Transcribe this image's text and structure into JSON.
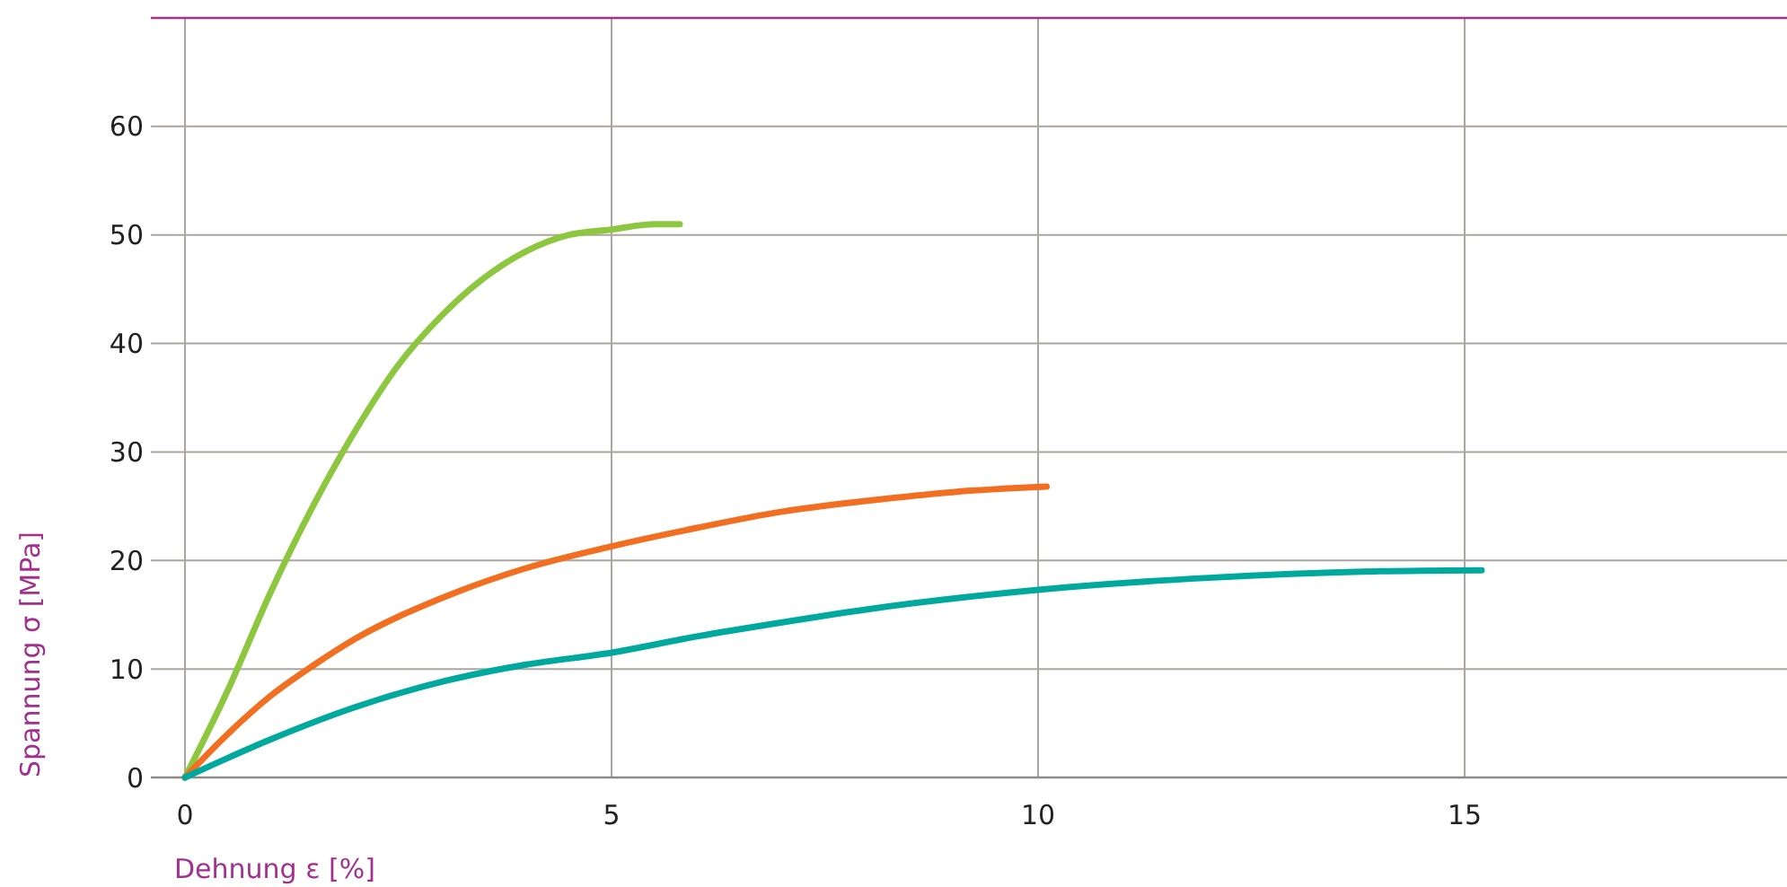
{
  "chart_data": {
    "type": "line",
    "xlabel": "Dehnung ε [%]",
    "ylabel": "Spannung σ [MPa]",
    "xlim": [
      -0.4,
      18.8
    ],
    "ylim": [
      0,
      70
    ],
    "xticks": [
      0,
      5,
      10,
      15
    ],
    "yticks": [
      0,
      10,
      20,
      30,
      40,
      50,
      60
    ],
    "grid": true,
    "line_style": "solid",
    "series": [
      {
        "color": "#8dc63f",
        "x": [
          0,
          0.5,
          1,
          1.5,
          2,
          2.5,
          3,
          3.5,
          4,
          4.5,
          5,
          5.5,
          5.8
        ],
        "values": [
          0,
          8,
          17,
          25,
          32,
          38,
          42.5,
          46,
          48.5,
          50,
          50.5,
          51,
          51
        ]
      },
      {
        "color": "#f26f21",
        "x": [
          0,
          0.5,
          1,
          1.5,
          2,
          3,
          4,
          5,
          6,
          7,
          8,
          9,
          10.1
        ],
        "values": [
          0,
          4,
          7.5,
          10.3,
          12.8,
          16.5,
          19.3,
          21.3,
          23,
          24.5,
          25.5,
          26.3,
          26.8
        ]
      },
      {
        "color": "#00a99d",
        "x": [
          0,
          1,
          2,
          3,
          4,
          5,
          6,
          7,
          8,
          10,
          12,
          14,
          15.2
        ],
        "values": [
          0,
          3.5,
          6.5,
          8.8,
          10.4,
          11.5,
          13,
          14.3,
          15.5,
          17.3,
          18.4,
          19,
          19.1
        ]
      }
    ]
  }
}
